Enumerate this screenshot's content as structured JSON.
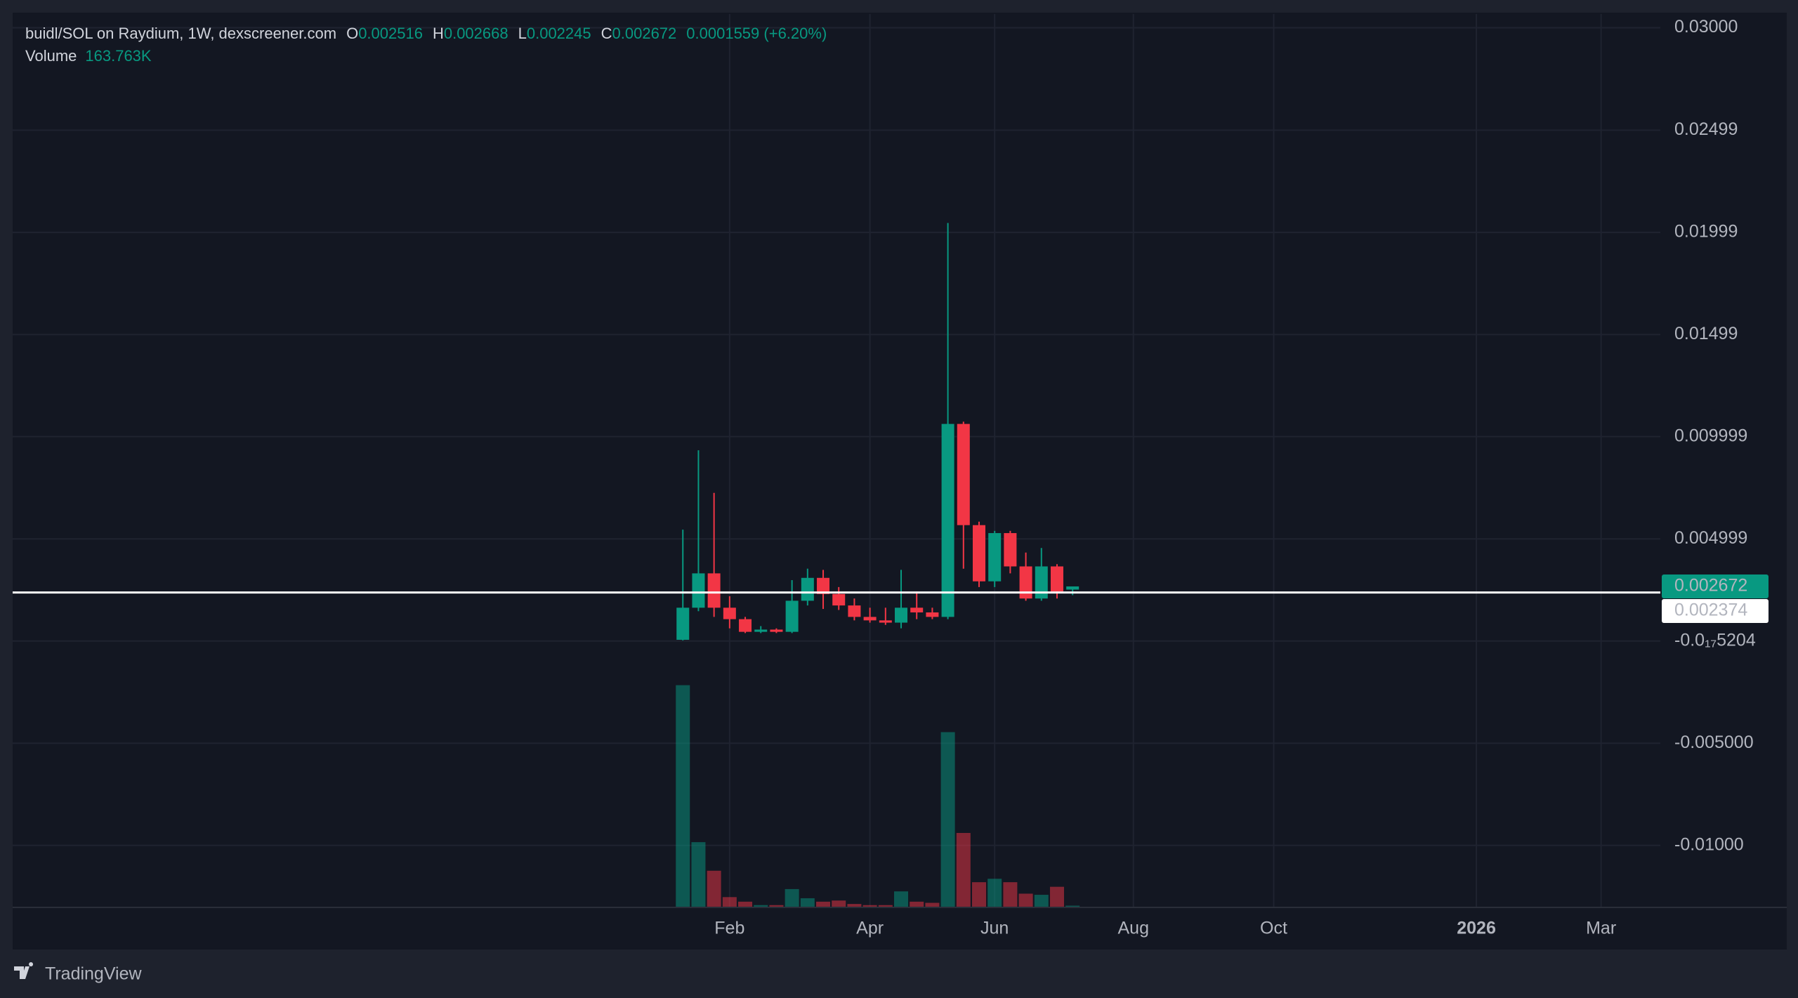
{
  "chart_data": {
    "type": "candlestick",
    "title": "buidl/SOL on Raydium, 1W, dexscreener.com",
    "legend": {
      "open_label": "O",
      "high_label": "H",
      "low_label": "L",
      "close_label": "C",
      "change": "0.0001559 (+6.20%)",
      "volume_label": "Volume",
      "volume_value_label": "163.763K"
    },
    "x": [
      0,
      1,
      2,
      3,
      4,
      5,
      6,
      7,
      8,
      9,
      10,
      11,
      12,
      13,
      14,
      15,
      16,
      17,
      18,
      19,
      20,
      21,
      22,
      23,
      24,
      25
    ],
    "series": [
      {
        "open": [
          6e-05,
          0.00163,
          0.00331,
          0.00163,
          0.00107,
          0.00045,
          0.00056,
          0.00045,
          0.00197,
          0.00309,
          0.0023,
          0.00174,
          0.00118,
          0.00101,
          0.0009,
          0.00163,
          0.0014,
          0.00118,
          0.01062,
          0.00567,
          0.00292,
          0.00528,
          0.00365,
          0.00208,
          0.00365,
          0.002516
        ],
        "high": [
          0.00545,
          0.00933,
          0.00725,
          0.00219,
          0.00118,
          0.00073,
          0.00062,
          0.00298,
          0.00354,
          0.00348,
          0.00264,
          0.00208,
          0.00163,
          0.00163,
          0.00348,
          0.00242,
          0.00163,
          0.02045,
          0.01073,
          0.00584,
          0.00539,
          0.00539,
          0.00433,
          0.00455,
          0.00376,
          0.002668
        ],
        "low": [
          3e-05,
          0.00146,
          0.00118,
          0.00062,
          0.00039,
          0.00039,
          0.00039,
          0.00039,
          0.00174,
          0.00157,
          0.00152,
          0.00101,
          0.0009,
          0.00079,
          0.00062,
          0.00107,
          0.00107,
          0.00107,
          0.00354,
          0.00264,
          0.00264,
          0.00331,
          0.00197,
          0.00197,
          0.00208,
          0.002245
        ],
        "close": [
          0.00163,
          0.00331,
          0.00163,
          0.00107,
          0.00045,
          0.00056,
          0.00045,
          0.00197,
          0.00309,
          0.0023,
          0.00174,
          0.00118,
          0.00101,
          0.0009,
          0.00163,
          0.0014,
          0.00118,
          0.01062,
          0.00567,
          0.00292,
          0.00528,
          0.00365,
          0.00208,
          0.00365,
          0.00242,
          0.002672
        ],
        "volume": [
          21150000,
          6210000,
          3490000,
          980000,
          545000,
          218000,
          218000,
          1744000,
          872000,
          545000,
          654000,
          327000,
          218000,
          218000,
          1526000,
          545000,
          436000,
          16680000,
          7085000,
          2398000,
          2725000,
          2398000,
          1308000,
          1199000,
          1962000,
          163763
        ],
        "up_color": "#089981",
        "down_color": "#f23645"
      }
    ],
    "ylim": [
      -0.01303,
      0.03067
    ],
    "yticks": [
      {
        "value": 0.03,
        "label": "0.03000"
      },
      {
        "value": 0.02499,
        "label": "0.02499"
      },
      {
        "value": 0.01999,
        "label": "0.01999"
      },
      {
        "value": 0.01499,
        "label": "0.01499"
      },
      {
        "value": 0.009999,
        "label": "0.009999"
      },
      {
        "value": 0.004999,
        "label": "0.004999"
      },
      {
        "value": -5.204e-18,
        "label": "-0.0₁₇5204"
      },
      {
        "value": -0.005,
        "label": "-0.005000"
      },
      {
        "value": -0.01,
        "label": "-0.01000"
      }
    ],
    "xlim": [
      -42.9,
      62.7
    ],
    "xticks": [
      {
        "value": 3,
        "label": "Feb"
      },
      {
        "value": 12,
        "label": "Apr"
      },
      {
        "value": 20,
        "label": "Jun"
      },
      {
        "value": 28.9,
        "label": "Aug"
      },
      {
        "value": 37.9,
        "label": "Oct"
      },
      {
        "value": 50.9,
        "label": "2026"
      },
      {
        "value": 58.9,
        "label": "Mar"
      }
    ],
    "volume_lim": [
      0,
      25000000
    ],
    "last_price": 0.002672,
    "crosshair_price": 0.002374,
    "grid": true,
    "branding": "TradingView"
  }
}
